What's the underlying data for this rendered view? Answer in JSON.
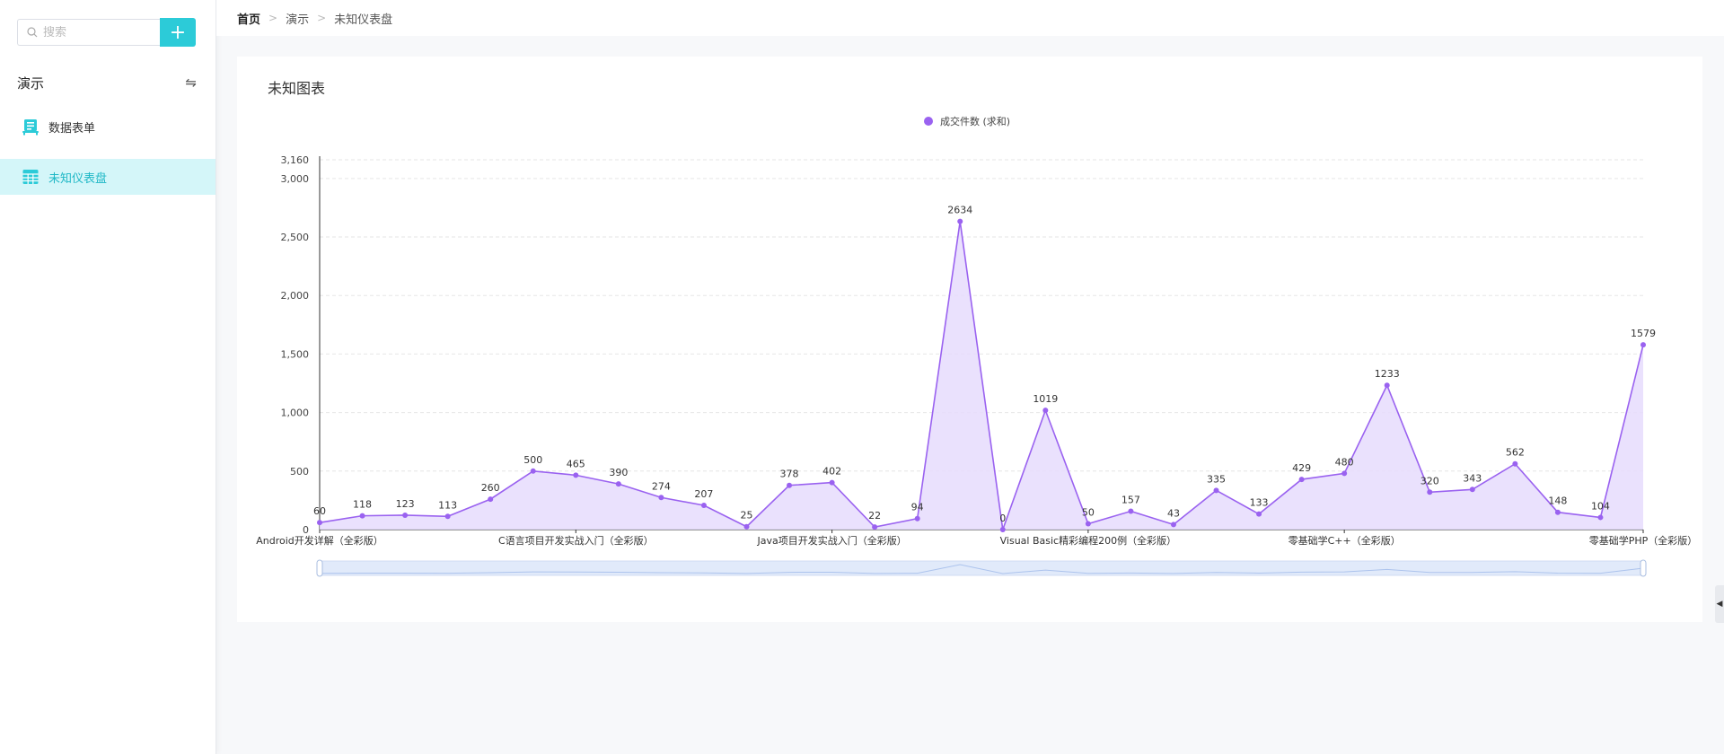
{
  "sidebar": {
    "search": {
      "placeholder": "搜索",
      "value": ""
    },
    "add_button_label": "+",
    "group_title": "演示",
    "swap_symbol": "⇋",
    "items": [
      {
        "label": "数据表单",
        "icon": "form-table-icon",
        "active": false
      },
      {
        "label": "未知仪表盘",
        "icon": "grid-table-icon",
        "active": true
      }
    ]
  },
  "breadcrumb": {
    "home": "首页",
    "section": "演示",
    "current": "未知仪表盘"
  },
  "card": {
    "title": "未知图表"
  },
  "colors": {
    "accent": "#2ccbd8",
    "series_line": "#9a62f0",
    "series_fill": "#e6dcfd",
    "active_item_bg": "#d4f6f9"
  },
  "chart_data": {
    "type": "area",
    "legend": {
      "position": "top-center",
      "entries": [
        "成交件数 (求和)"
      ]
    },
    "ylim": [
      0,
      3160
    ],
    "y_ticks": [
      "0",
      "500",
      "1,000",
      "1,500",
      "2,000",
      "2,500",
      "3,000",
      "3,160"
    ],
    "y_tick_values": [
      0,
      500,
      1000,
      1500,
      2000,
      2500,
      3000,
      3160
    ],
    "grid": true,
    "x_tick_labels": [
      {
        "index": 0,
        "label": "Android开发详解（全彩版）"
      },
      {
        "index": 6,
        "label": "C语言项目开发实战入门（全彩版）"
      },
      {
        "index": 12,
        "label": "Java项目开发实战入门（全彩版）"
      },
      {
        "index": 18,
        "label": "Visual Basic精彩编程200例（全彩版）"
      },
      {
        "index": 24,
        "label": "零基础学C++（全彩版）"
      },
      {
        "index": 31,
        "label": "零基础学PHP（全彩版）"
      }
    ],
    "series": [
      {
        "name": "成交件数 (求和)",
        "values": [
          60,
          118,
          123,
          113,
          260,
          500,
          465,
          390,
          274,
          207,
          25,
          378,
          402,
          22,
          94,
          2634,
          0,
          1019,
          50,
          157,
          43,
          335,
          133,
          429,
          480,
          1233,
          320,
          343,
          562,
          148,
          104,
          1579
        ],
        "labels": [
          "60",
          "118",
          "123",
          "113",
          "260",
          "500",
          "465",
          "390",
          "274",
          "207",
          "25",
          "378",
          "402",
          "22",
          "94",
          "2634",
          "0",
          "1019",
          "50",
          "157",
          "43",
          "335",
          "133",
          "429",
          "480",
          "1233",
          "320",
          "343",
          "562",
          "148",
          "104",
          "1579"
        ]
      }
    ],
    "data_zoom": {
      "start_percent": 0,
      "end_percent": 100
    }
  }
}
